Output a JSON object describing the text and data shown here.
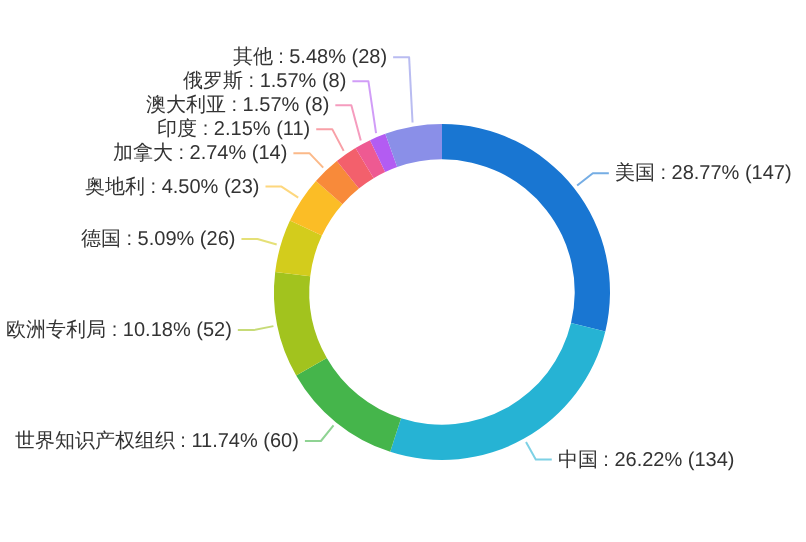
{
  "chart_data": {
    "type": "donut",
    "categories": [
      "美国",
      "中国",
      "世界知识产权组织",
      "欧洲专利局",
      "德国",
      "奥地利",
      "加拿大",
      "印度",
      "澳大利亚",
      "俄罗斯",
      "其他"
    ],
    "values": [
      147,
      134,
      60,
      52,
      26,
      23,
      14,
      11,
      8,
      8,
      28
    ],
    "value_labels": [
      "28.77% (147)",
      "26.22% (134)",
      "11.74% (60)",
      "10.18% (52)",
      "5.09% (26)",
      "4.50% (23)",
      "2.74% (14)",
      "2.15% (11)",
      "1.57% (8)",
      "1.57% (8)",
      "5.48% (28)"
    ],
    "colors": [
      "#1976d2",
      "#26b3d4",
      "#45b54b",
      "#a2c31e",
      "#d3cc1c",
      "#fbbd26",
      "#f88a3a",
      "#f3606c",
      "#ee5a92",
      "#b35cf2",
      "#8a8fe8"
    ]
  }
}
